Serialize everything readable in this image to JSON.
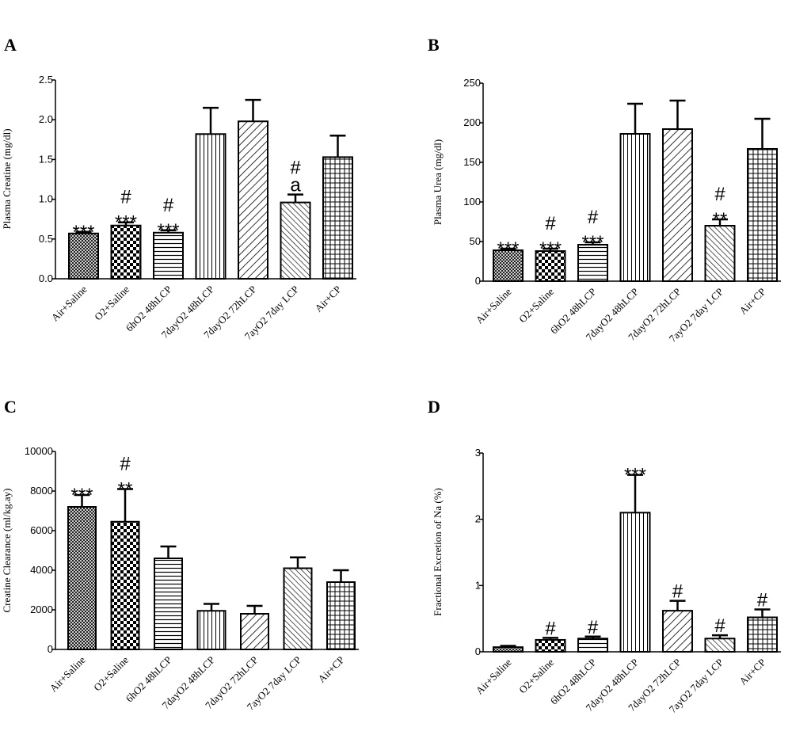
{
  "chart_data": [
    {
      "panel": "A",
      "type": "bar",
      "ylabel": "Plasma Creatine (mg/dl)",
      "ylim": [
        0,
        2.5
      ],
      "yticks": [
        "0.0",
        "0.5",
        "1.0",
        "1.5",
        "2.0",
        "2.5"
      ],
      "categories": [
        "Air+Saline",
        "O2+Saline",
        "6hO2 48hLCP",
        "7dayO2 48hLCP",
        "7dayO2 72hLCP",
        "7ayO2 7day LCP",
        "Air+CP"
      ],
      "values": [
        0.57,
        0.67,
        0.58,
        1.82,
        1.98,
        0.96,
        1.53
      ],
      "errors": [
        0.02,
        0.04,
        0.03,
        0.33,
        0.27,
        0.1,
        0.27
      ],
      "annotations": [
        [
          "***"
        ],
        [
          "#",
          "***"
        ],
        [
          "#",
          "***"
        ],
        [],
        [],
        [
          "#",
          "a"
        ],
        []
      ]
    },
    {
      "panel": "B",
      "type": "bar",
      "ylabel": "Plasma Urea (mg/dl)",
      "ylim": [
        0,
        250
      ],
      "yticks": [
        "0",
        "50",
        "100",
        "150",
        "200",
        "250"
      ],
      "categories": [
        "Air+Saline",
        "O2+Saline",
        "6hO2 48hLCP",
        "7dayO2 48hLCP",
        "7dayO2 72hLCP",
        "7ayO2 7day LCP",
        "Air+CP"
      ],
      "values": [
        39,
        38,
        46,
        186,
        192,
        70,
        167
      ],
      "errors": [
        2,
        3,
        3,
        38,
        36,
        8,
        38
      ],
      "annotations": [
        [
          "***"
        ],
        [
          "#",
          "***"
        ],
        [
          "#",
          "***"
        ],
        [],
        [],
        [
          "#",
          "**"
        ],
        []
      ]
    },
    {
      "panel": "C",
      "type": "bar",
      "ylabel": "Creatine Clearance (ml/kg.ay)",
      "ylim": [
        0,
        10000
      ],
      "yticks": [
        "0",
        "2000",
        "4000",
        "6000",
        "8000",
        "10000"
      ],
      "categories": [
        "Air+Saline",
        "O2+Saline",
        "6hO2 48hLCP",
        "7dayO2 48hLCP",
        "7dayO2 72hLCP",
        "7ayO2 7day LCP",
        "Air+CP"
      ],
      "values": [
        7200,
        6450,
        4600,
        1950,
        1800,
        4100,
        3400
      ],
      "errors": [
        600,
        1650,
        600,
        350,
        400,
        550,
        600
      ],
      "annotations": [
        [
          "***"
        ],
        [
          "#",
          "**"
        ],
        [],
        [],
        [],
        [],
        []
      ]
    },
    {
      "panel": "D",
      "type": "bar",
      "ylabel": "Fractional Excretion of Na (%)",
      "ylim": [
        0,
        3
      ],
      "yticks": [
        "0",
        "1",
        "2",
        "3"
      ],
      "categories": [
        "Air+Saline",
        "O2+Saline",
        "6hO2 48hLCP",
        "7dayO2 48hLCP",
        "7dayO2 72hLCP",
        "7ayO2 7day LCP",
        "Air+CP"
      ],
      "values": [
        0.07,
        0.18,
        0.2,
        2.1,
        0.62,
        0.2,
        0.52
      ],
      "errors": [
        0.02,
        0.03,
        0.03,
        0.57,
        0.15,
        0.05,
        0.12
      ],
      "annotations": [
        [],
        [
          "#"
        ],
        [
          "#"
        ],
        [
          "***"
        ],
        [
          "#"
        ],
        [
          "#"
        ],
        [
          "#"
        ]
      ]
    }
  ]
}
